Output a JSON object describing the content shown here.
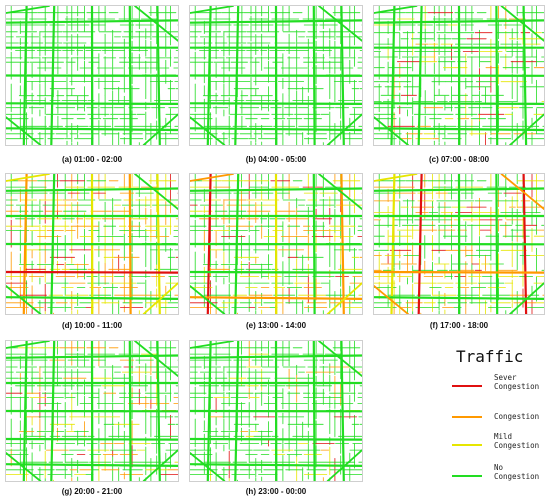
{
  "panels": [
    {
      "id": "a",
      "caption": "(a) 01:00 - 02:00",
      "congestion": 0.0
    },
    {
      "id": "b",
      "caption": "(b) 04:00 - 05:00",
      "congestion": 0.0
    },
    {
      "id": "c",
      "caption": "(c) 07:00 - 08:00",
      "congestion": 0.35
    },
    {
      "id": "d",
      "caption": "(d) 10:00 - 11:00",
      "congestion": 0.75
    },
    {
      "id": "e",
      "caption": "(e) 13:00 - 14:00",
      "congestion": 0.7
    },
    {
      "id": "f",
      "caption": "(f) 17:00 - 18:00",
      "congestion": 0.78
    },
    {
      "id": "g",
      "caption": "(g) 20:00 - 21:00",
      "congestion": 0.4
    },
    {
      "id": "h",
      "caption": "(h) 23:00 - 00:00",
      "congestion": 0.2
    }
  ],
  "legend": {
    "title": "Traffic",
    "items": [
      {
        "label": "Sever\nCongestion",
        "color": "#e01010"
      },
      {
        "label": "Congestion",
        "color": "#ff9900"
      },
      {
        "label": "Mild\nCongestion",
        "color": "#e6e600"
      },
      {
        "label": "No\nCongestion",
        "color": "#22dd22"
      }
    ]
  }
}
